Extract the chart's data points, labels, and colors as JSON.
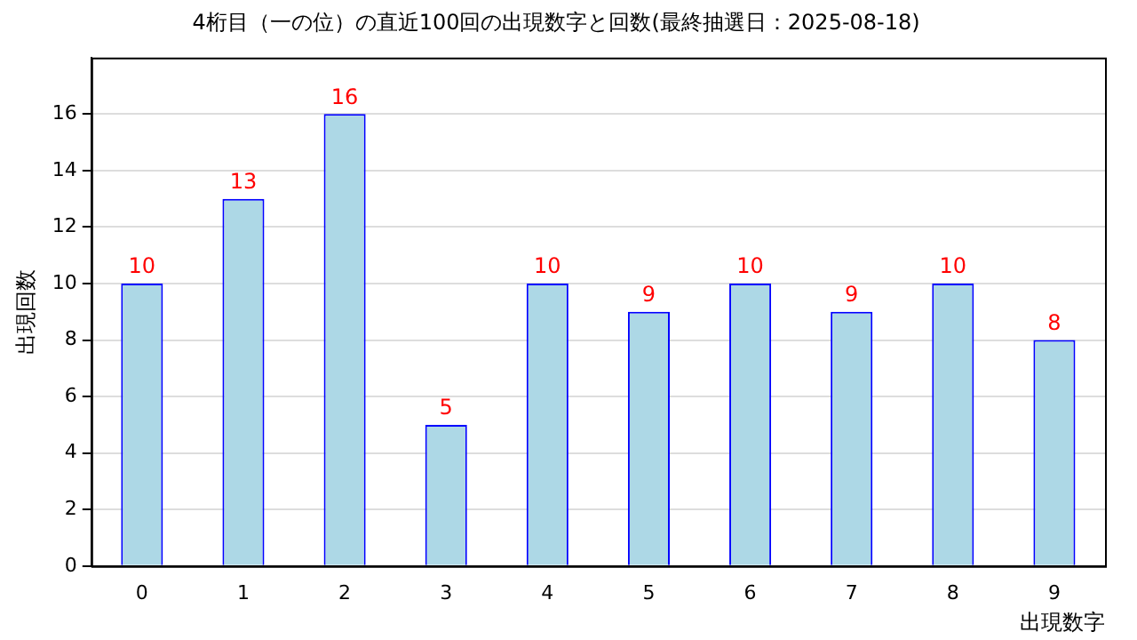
{
  "chart_data": {
    "type": "bar",
    "title": "4桁目（一の位）の直近100回の出現数字と回数(最終抽選日：2025-08-18)",
    "xlabel": "出現数字",
    "ylabel": "出現回数",
    "categories": [
      "0",
      "1",
      "2",
      "3",
      "4",
      "5",
      "6",
      "7",
      "8",
      "9"
    ],
    "values": [
      10,
      13,
      16,
      5,
      10,
      9,
      10,
      9,
      10,
      8
    ],
    "color": "#add8e6",
    "ylim": [
      0,
      18
    ],
    "yticks": [
      0,
      2,
      4,
      6,
      8,
      10,
      12,
      14,
      16
    ],
    "grid": "y",
    "data_labels": true,
    "legend": false
  }
}
